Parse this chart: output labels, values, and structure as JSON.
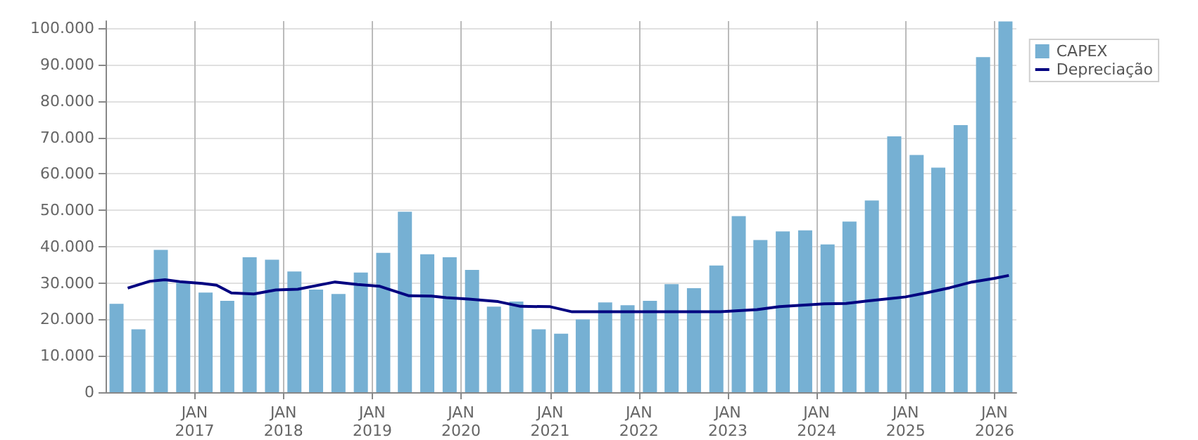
{
  "chart_data": {
    "type": "bar",
    "x": [
      "2016-02-15",
      "2016-05-15",
      "2016-08-15",
      "2016-11-15",
      "2017-02-15",
      "2017-05-15",
      "2017-08-15",
      "2017-11-15",
      "2018-02-15",
      "2018-05-15",
      "2018-08-15",
      "2018-11-15",
      "2019-02-15",
      "2019-05-15",
      "2019-08-15",
      "2019-11-15",
      "2020-02-15",
      "2020-05-15",
      "2020-08-15",
      "2020-11-15",
      "2021-02-15",
      "2021-05-15",
      "2021-08-15",
      "2021-11-15",
      "2022-02-15",
      "2022-05-15",
      "2022-08-15",
      "2022-11-15",
      "2023-02-15",
      "2023-05-15",
      "2023-08-15",
      "2023-11-15",
      "2024-02-15",
      "2024-05-15",
      "2024-08-15",
      "2024-11-15",
      "2025-02-15",
      "2025-05-15",
      "2025-08-15",
      "2025-11-15",
      "2026-02-15"
    ],
    "series": [
      {
        "name": "CAPEX",
        "color": "#76b0d3",
        "values": [
          24300,
          17300,
          39100,
          30300,
          27400,
          25100,
          37100,
          36400,
          33200,
          28200,
          27000,
          32900,
          38300,
          49600,
          37900,
          37100,
          33600,
          23500,
          24900,
          17300,
          16100,
          20000,
          24700,
          23900,
          25100,
          29700,
          28600,
          34800,
          48400,
          41800,
          44200,
          44500,
          40600,
          46900,
          52700,
          70300,
          65200,
          61700,
          73400,
          92100,
          101900
        ]
      },
      {
        "name": "Depreciação",
        "type": "line",
        "color": "#000080",
        "x": [
          "2016-04",
          "2016-07",
          "2016-09",
          "2016-11",
          "2017-02",
          "2017-04",
          "2017-06",
          "2017-09",
          "2017-12",
          "2018-03",
          "2018-08",
          "2018-11",
          "2019-02",
          "2019-06",
          "2019-09",
          "2019-11",
          "2020-02",
          "2020-06",
          "2020-09",
          "2021-01",
          "2021-04",
          "2022-12",
          "2023-05",
          "2023-08",
          "2023-11",
          "2024-02",
          "2024-05",
          "2024-08",
          "2025-01",
          "2025-04",
          "2025-07",
          "2025-10",
          "2026-01",
          "2026-03"
        ],
        "values": [
          28600,
          30500,
          30900,
          30400,
          29900,
          29400,
          27300,
          27000,
          28100,
          28300,
          30300,
          29600,
          29100,
          26500,
          26400,
          26000,
          25600,
          24900,
          23600,
          23500,
          22100,
          22100,
          22700,
          23500,
          23900,
          24300,
          24400,
          25100,
          26200,
          27400,
          28700,
          30300,
          31300,
          32100
        ]
      }
    ],
    "xlim": [
      "2016-01",
      "2026-04"
    ],
    "xticks": [
      {
        "value": "2017-01",
        "label": "JAN\n2017"
      },
      {
        "value": "2018-01",
        "label": "JAN\n2018"
      },
      {
        "value": "2019-01",
        "label": "JAN\n2019"
      },
      {
        "value": "2020-01",
        "label": "JAN\n2020"
      },
      {
        "value": "2021-01",
        "label": "JAN\n2021"
      },
      {
        "value": "2022-01",
        "label": "JAN\n2022"
      },
      {
        "value": "2023-01",
        "label": "JAN\n2023"
      },
      {
        "value": "2024-01",
        "label": "JAN\n2024"
      },
      {
        "value": "2025-01",
        "label": "JAN\n2025"
      },
      {
        "value": "2026-01",
        "label": "JAN\n2026"
      }
    ],
    "ylim": [
      0,
      102000
    ],
    "yticks": [
      0,
      {
        "value": 10000,
        "label": "10.000"
      },
      {
        "value": 20000,
        "label": "20.000"
      },
      {
        "value": 30000,
        "label": "30.000"
      },
      {
        "value": 40000,
        "label": "40.000"
      },
      {
        "value": 50000,
        "label": "50.000"
      },
      {
        "value": 60000,
        "label": "60.000"
      },
      {
        "value": 70000,
        "label": "70.000"
      },
      {
        "value": 80000,
        "label": "80.000"
      },
      {
        "value": 90000,
        "label": "90.000"
      },
      {
        "value": 100000,
        "label": "100.000"
      }
    ],
    "grid": true,
    "legend": "top right",
    "marker": "none",
    "line_style": "solid"
  }
}
